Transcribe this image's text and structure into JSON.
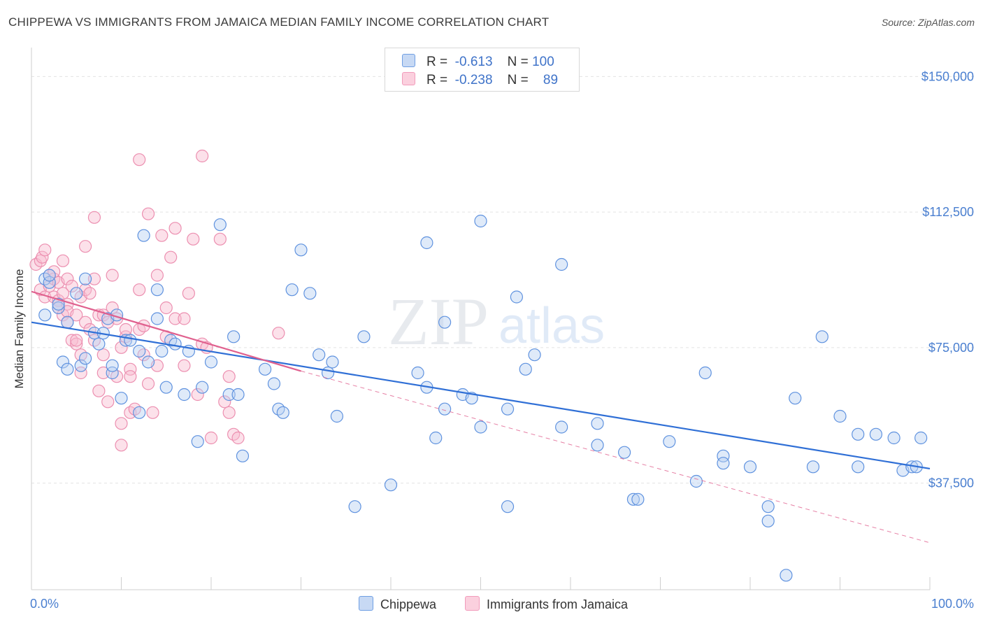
{
  "header": {
    "title": "CHIPPEWA VS IMMIGRANTS FROM JAMAICA MEDIAN FAMILY INCOME CORRELATION CHART",
    "source": "Source: ZipAtlas.com"
  },
  "watermark": {
    "zip": "ZIP",
    "atlas": "atlas"
  },
  "legend": {
    "rows": [
      {
        "r_label": "R =",
        "r_value": "-0.613",
        "n_label": "N =",
        "n_value": "100"
      },
      {
        "r_label": "R =",
        "r_value": "-0.238",
        "n_label": "N =",
        "n_value": "89"
      }
    ]
  },
  "chart_data": {
    "type": "scatter",
    "title": "CHIPPEWA VS IMMIGRANTS FROM JAMAICA MEDIAN FAMILY INCOME CORRELATION CHART",
    "xlabel": "",
    "ylabel": "Median Family Income",
    "xlim": [
      0,
      100
    ],
    "ylim": [
      8000,
      158000
    ],
    "y_ticks": [
      37500,
      75000,
      112500,
      150000
    ],
    "y_tick_labels": [
      "$37,500",
      "$75,000",
      "$112,500",
      "$150,000"
    ],
    "x_tick_labels": [
      "0.0%",
      "100.0%"
    ],
    "grid": true,
    "legend_position": "top-center",
    "series": [
      {
        "name": "Chippewa",
        "color": "#6f9fe3",
        "trend": {
          "x": [
            0,
            100
          ],
          "y": [
            82000,
            41500
          ],
          "style": "solid",
          "color": "#2f6fd6"
        },
        "points": [
          [
            1.5,
            94
          ],
          [
            1.5,
            84
          ],
          [
            3,
            86
          ],
          [
            2,
            93
          ],
          [
            3.5,
            71
          ],
          [
            4,
            69
          ],
          [
            4,
            82
          ],
          [
            5,
            90
          ],
          [
            5.5,
            70
          ],
          [
            6,
            72
          ],
          [
            7,
            79
          ],
          [
            7.5,
            76
          ],
          [
            8.5,
            83
          ],
          [
            9,
            68
          ],
          [
            9,
            70
          ],
          [
            9.5,
            84
          ],
          [
            10,
            61
          ],
          [
            10.5,
            77
          ],
          [
            11,
            77
          ],
          [
            12,
            74
          ],
          [
            12,
            57
          ],
          [
            12.5,
            106
          ],
          [
            13,
            71
          ],
          [
            14,
            83
          ],
          [
            14,
            91
          ],
          [
            14.5,
            74
          ],
          [
            15,
            64
          ],
          [
            15.5,
            77
          ],
          [
            16,
            76
          ],
          [
            17,
            62
          ],
          [
            17.5,
            74
          ],
          [
            18.5,
            49
          ],
          [
            19,
            64
          ],
          [
            20,
            71
          ],
          [
            21,
            109
          ],
          [
            22,
            62
          ],
          [
            22.5,
            78
          ],
          [
            23,
            62
          ],
          [
            23.5,
            45
          ],
          [
            26,
            69
          ],
          [
            27,
            65
          ],
          [
            27.5,
            58
          ],
          [
            28,
            57
          ],
          [
            29,
            91
          ],
          [
            30,
            102
          ],
          [
            31,
            90
          ],
          [
            32,
            73
          ],
          [
            33,
            68
          ],
          [
            33.5,
            71
          ],
          [
            34,
            56
          ],
          [
            36,
            31
          ],
          [
            37,
            78
          ],
          [
            40,
            37
          ],
          [
            43,
            68
          ],
          [
            44,
            104
          ],
          [
            44,
            64
          ],
          [
            45,
            50
          ],
          [
            46,
            82
          ],
          [
            46,
            58
          ],
          [
            48,
            62
          ],
          [
            49,
            61
          ],
          [
            50,
            53
          ],
          [
            50,
            110
          ],
          [
            53,
            58
          ],
          [
            53,
            31
          ],
          [
            54,
            89
          ],
          [
            55,
            69
          ],
          [
            56,
            73
          ],
          [
            59,
            98
          ],
          [
            59,
            53
          ],
          [
            63,
            54
          ],
          [
            63,
            48
          ],
          [
            66,
            46
          ],
          [
            67,
            33
          ],
          [
            67.5,
            33
          ],
          [
            71,
            49
          ],
          [
            74,
            38
          ],
          [
            75,
            68
          ],
          [
            77,
            45
          ],
          [
            77,
            43
          ],
          [
            80,
            42
          ],
          [
            82,
            27
          ],
          [
            82,
            31
          ],
          [
            84,
            12
          ],
          [
            85,
            61
          ],
          [
            87,
            42
          ],
          [
            88,
            78
          ],
          [
            90,
            56
          ],
          [
            92,
            51
          ],
          [
            92,
            42
          ],
          [
            94,
            51
          ],
          [
            96,
            50
          ],
          [
            97,
            41
          ],
          [
            98,
            42
          ],
          [
            98.5,
            42
          ],
          [
            99,
            50
          ],
          [
            3,
            87
          ],
          [
            6,
            94
          ],
          [
            8,
            79
          ],
          [
            2,
            95
          ]
        ]
      },
      {
        "name": "Immigrants from Jamaica",
        "color": "#f29bbb",
        "trend": {
          "x": [
            0,
            30
          ],
          "y": [
            90500,
            68500
          ],
          "style": "solid",
          "color": "#e0608e",
          "extend_x": [
            30,
            100
          ],
          "extend_y": [
            68500,
            21000
          ],
          "extend_style": "dashed"
        },
        "points": [
          [
            0.5,
            98
          ],
          [
            1,
            91
          ],
          [
            1,
            99
          ],
          [
            1.2,
            100
          ],
          [
            1.5,
            102
          ],
          [
            1.5,
            89
          ],
          [
            2,
            95
          ],
          [
            2,
            92
          ],
          [
            2.5,
            94
          ],
          [
            2.5,
            96
          ],
          [
            2.5,
            89
          ],
          [
            3,
            88
          ],
          [
            3,
            93
          ],
          [
            3,
            86
          ],
          [
            3.5,
            84
          ],
          [
            3.5,
            99
          ],
          [
            3.5,
            90
          ],
          [
            4,
            82
          ],
          [
            4,
            94
          ],
          [
            4,
            87
          ],
          [
            4,
            85
          ],
          [
            4.5,
            77
          ],
          [
            4.5,
            92
          ],
          [
            5,
            76
          ],
          [
            5,
            84
          ],
          [
            5,
            77
          ],
          [
            5.5,
            89
          ],
          [
            5.5,
            73
          ],
          [
            5.5,
            68
          ],
          [
            6,
            82
          ],
          [
            6,
            91
          ],
          [
            6,
            103
          ],
          [
            6.5,
            80
          ],
          [
            6.5,
            90
          ],
          [
            7,
            111
          ],
          [
            7,
            94
          ],
          [
            7,
            77
          ],
          [
            7.5,
            63
          ],
          [
            7.5,
            84
          ],
          [
            8,
            84
          ],
          [
            8,
            73
          ],
          [
            8,
            68
          ],
          [
            8.5,
            82
          ],
          [
            8.5,
            60
          ],
          [
            9,
            86
          ],
          [
            9,
            95
          ],
          [
            9.5,
            67
          ],
          [
            9.5,
            83
          ],
          [
            10,
            54
          ],
          [
            10,
            48
          ],
          [
            10,
            75
          ],
          [
            10.5,
            78
          ],
          [
            10.5,
            80
          ],
          [
            11,
            57
          ],
          [
            11,
            69
          ],
          [
            11,
            67
          ],
          [
            11.5,
            58
          ],
          [
            12,
            80
          ],
          [
            12,
            91
          ],
          [
            12,
            127
          ],
          [
            12.5,
            73
          ],
          [
            12.5,
            81
          ],
          [
            13,
            112
          ],
          [
            13,
            65
          ],
          [
            13.5,
            57
          ],
          [
            14,
            70
          ],
          [
            14,
            95
          ],
          [
            14.5,
            106
          ],
          [
            15,
            78
          ],
          [
            15,
            86
          ],
          [
            15.5,
            100
          ],
          [
            16,
            83
          ],
          [
            16,
            108
          ],
          [
            17,
            70
          ],
          [
            17,
            83
          ],
          [
            17.5,
            90
          ],
          [
            18,
            105
          ],
          [
            18.5,
            62
          ],
          [
            19,
            128
          ],
          [
            19,
            76
          ],
          [
            19.5,
            75
          ],
          [
            20,
            50
          ],
          [
            21,
            105
          ],
          [
            21.5,
            60
          ],
          [
            22,
            67
          ],
          [
            22,
            57
          ],
          [
            22.5,
            51
          ],
          [
            23,
            50
          ],
          [
            27.5,
            79
          ]
        ]
      }
    ]
  },
  "bottom_legend": {
    "items": [
      {
        "label": "Chippewa",
        "color": "#c7d9f4",
        "border": "#6f9fe3"
      },
      {
        "label": "Immigrants from Jamaica",
        "color": "#fbd0de",
        "border": "#f29bbb"
      }
    ]
  }
}
